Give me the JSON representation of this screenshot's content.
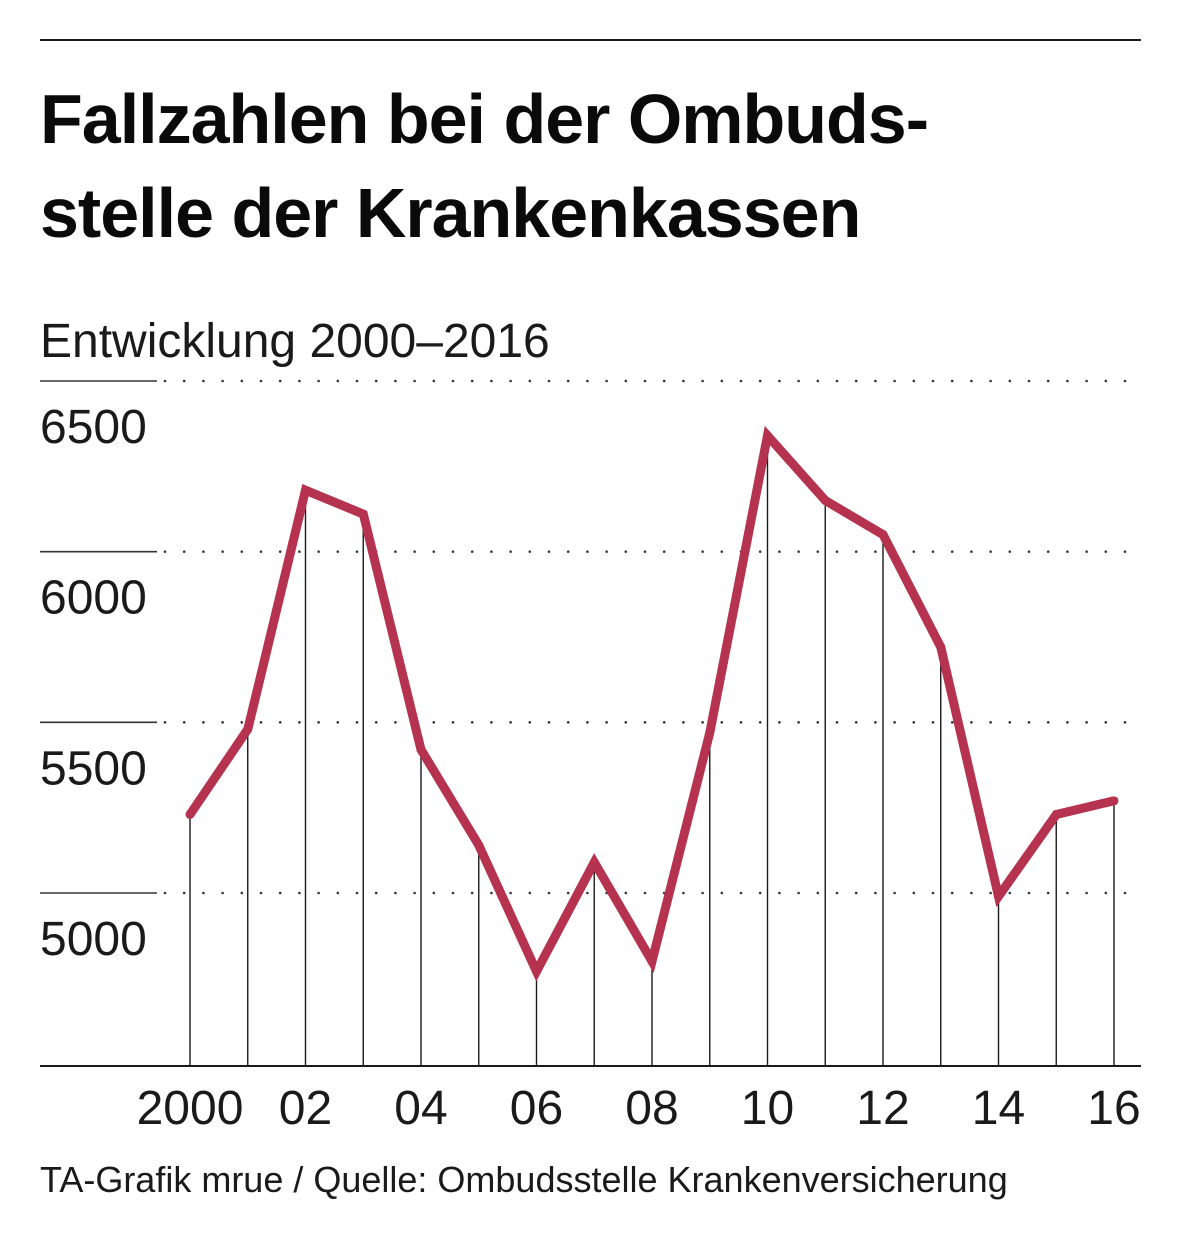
{
  "title_lines": [
    "Fallzahlen bei der Ombuds-",
    "stelle der Krankenkassen"
  ],
  "subtitle": "Entwicklung 2000–2016",
  "source": "TA-Grafik mrue / Quelle: Ombudsstelle Krankenversicherung",
  "colors": {
    "line": "#b5334f",
    "text": "#1a1a1a",
    "grid": "#333333"
  },
  "chart_data": {
    "type": "line",
    "title": "Fallzahlen bei der Ombudsstelle der Krankenkassen",
    "subtitle": "Entwicklung 2000–2016",
    "x": [
      2000,
      2001,
      2002,
      2003,
      2004,
      2005,
      2006,
      2007,
      2008,
      2009,
      2010,
      2011,
      2012,
      2013,
      2014,
      2015,
      2016
    ],
    "series": [
      {
        "name": "Fallzahlen",
        "values": [
          5230,
          5480,
          6180,
          6110,
          5420,
          5140,
          4770,
          5090,
          4800,
          5470,
          6340,
          6150,
          6050,
          5720,
          4990,
          5230,
          5270
        ]
      }
    ],
    "xtick_values": [
      2000,
      2002,
      2004,
      2006,
      2008,
      2010,
      2012,
      2014,
      2016
    ],
    "xtick_labels": [
      "2000",
      "02",
      "04",
      "06",
      "08",
      "10",
      "12",
      "14",
      "16"
    ],
    "yticks": [
      5000,
      5500,
      6000,
      6500
    ],
    "ylim": [
      4500,
      6500
    ],
    "grid": true,
    "xlabel": "",
    "ylabel": ""
  }
}
